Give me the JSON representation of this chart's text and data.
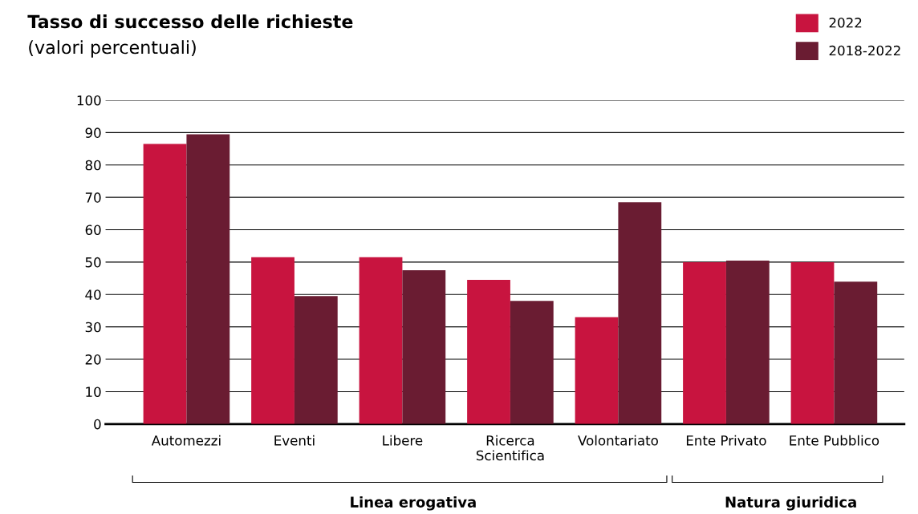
{
  "chart_data": {
    "type": "bar",
    "title": "Tasso di successo delle richieste",
    "subtitle": "(valori percentuali)",
    "categories": [
      "Automezzi",
      "Eventi",
      "Libere",
      "Ricerca\nScientifica",
      "Volontariato",
      "Ente Privato",
      "Ente Pubblico"
    ],
    "series": [
      {
        "name": "2022",
        "color": "#c8143f",
        "values": [
          86.5,
          51.5,
          51.5,
          44.5,
          33,
          50,
          50
        ]
      },
      {
        "name": "2018-2022",
        "color": "#6a1c32",
        "values": [
          89.5,
          39.5,
          47.5,
          38,
          68.5,
          50.5,
          44
        ]
      }
    ],
    "ylim": [
      0,
      100
    ],
    "yticks": [
      0,
      10,
      20,
      30,
      40,
      50,
      60,
      70,
      80,
      90,
      100
    ],
    "grid": "y",
    "legend": "top right",
    "annotations": [
      "Linea erogativa",
      "Natura giuridica"
    ]
  }
}
